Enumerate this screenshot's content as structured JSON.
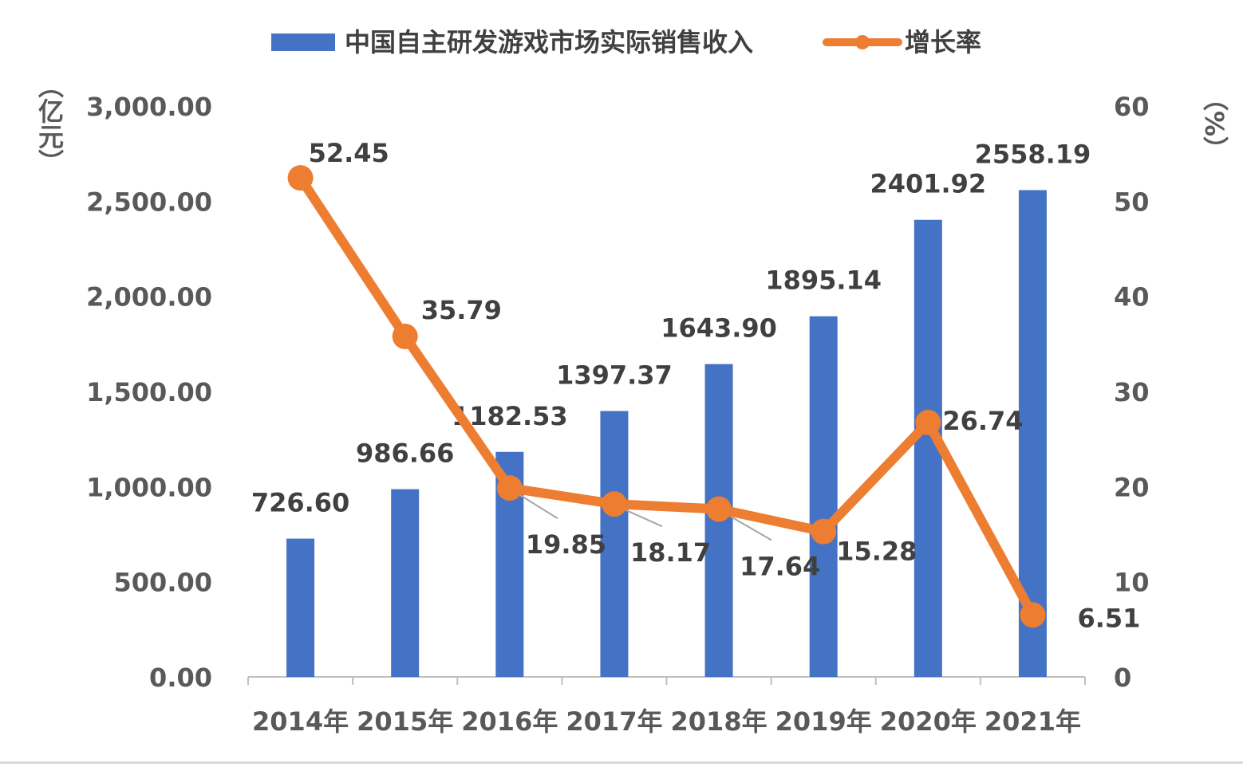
{
  "chart_data": {
    "type": "bar",
    "categories": [
      "2014年",
      "2015年",
      "2016年",
      "2017年",
      "2018年",
      "2019年",
      "2020年",
      "2021年"
    ],
    "series": [
      {
        "name": "中国自主研发游戏市场实际销售收入",
        "type": "bar",
        "axis": "left",
        "values": [
          726.6,
          986.66,
          1182.53,
          1397.37,
          1643.9,
          1895.14,
          2401.92,
          2558.19
        ],
        "labels": [
          "726.60",
          "986.66",
          "1182.53",
          "1397.37",
          "1643.90",
          "1895.14",
          "2401.92",
          "2558.19"
        ],
        "color": "#4472C4"
      },
      {
        "name": "增长率",
        "type": "line",
        "axis": "right",
        "values": [
          52.45,
          35.79,
          19.85,
          18.17,
          17.64,
          15.28,
          26.74,
          6.51
        ],
        "labels": [
          "52.45",
          "35.79",
          "19.85",
          "18.17",
          "17.64",
          "15.28",
          "26.74",
          "6.51"
        ],
        "color": "#ED7D31"
      }
    ],
    "y_left": {
      "label": "（亿元）",
      "ylim": [
        0,
        3000
      ],
      "ticks": [
        "0.00",
        "500.00",
        "1,000.00",
        "1,500.00",
        "2,000.00",
        "2,500.00",
        "3,000.00"
      ],
      "tick_values": [
        0,
        500,
        1000,
        1500,
        2000,
        2500,
        3000
      ]
    },
    "y_right": {
      "label": "（%）",
      "ylim": [
        0,
        60
      ],
      "ticks": [
        "0",
        "10",
        "20",
        "30",
        "40",
        "50",
        "60"
      ],
      "tick_values": [
        0,
        10,
        20,
        30,
        40,
        50,
        60
      ]
    },
    "grid": false,
    "legend": "top-center"
  }
}
